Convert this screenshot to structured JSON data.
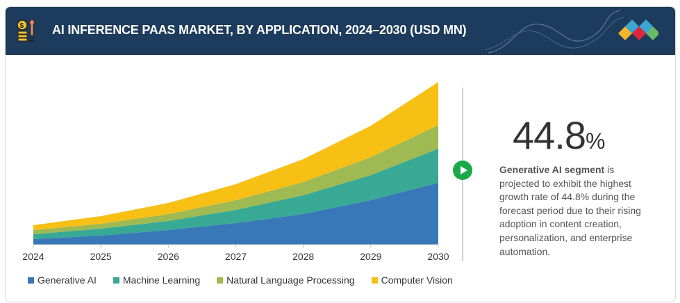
{
  "header": {
    "title": "AI INFERENCE PAAS MARKET, BY APPLICATION, 2024–2030 (USD MN)"
  },
  "highlight": {
    "value": "44.8",
    "unit": "%",
    "bold": "Generative AI segment",
    "text": " is projected to exhibit the  highest growth rate of 44.8% during the forecast period due to their rising adoption in content creation, personalization, and enterprise automation."
  },
  "chart_data": {
    "type": "area",
    "stacked": true,
    "title": "AI INFERENCE PAAS MARKET, BY APPLICATION, 2024–2030 (USD MN)",
    "x": [
      "2024",
      "2025",
      "2026",
      "2027",
      "2028",
      "2029",
      "2030"
    ],
    "series": [
      {
        "name": "Generative AI",
        "color": "#3878b8",
        "values": [
          8,
          13,
          21,
          31,
          44,
          64,
          89
        ]
      },
      {
        "name": "Machine Learning",
        "color": "#38a994",
        "values": [
          7,
          10,
          13,
          19,
          27,
          36,
          49
        ]
      },
      {
        "name": "Natural Language Processing",
        "color": "#9fba52",
        "values": [
          6,
          7,
          10,
          14,
          19,
          26,
          34
        ]
      },
      {
        "name": "Computer Vision",
        "color": "#f8c015",
        "values": [
          7,
          11,
          16,
          23,
          33,
          45,
          62
        ]
      }
    ],
    "ylim": [
      0,
      234
    ],
    "grid": false,
    "legend": "bottom"
  }
}
